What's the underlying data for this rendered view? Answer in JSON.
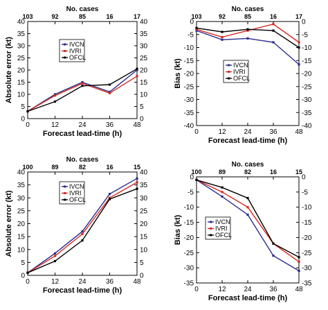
{
  "colors": {
    "IVCN": "#2a2a8c",
    "IVRI": "#d42a1e",
    "OFCL": "#000000"
  },
  "chart_data": [
    {
      "type": "line",
      "x": [
        0,
        12,
        24,
        36,
        48
      ],
      "xlabel": "Forecast lead-time (h)",
      "ylabel": "Absolute error (kt)",
      "toplabel": "No. cases",
      "top_ticks": [
        "103",
        "92",
        "85",
        "16",
        "17"
      ],
      "xticks": [
        "0",
        "12",
        "24",
        "36",
        "48"
      ],
      "ylim": [
        0,
        40
      ],
      "yticks": [
        "0",
        "5",
        "10",
        "15",
        "20",
        "25",
        "30",
        "35",
        "40"
      ],
      "legend_position": "upper-left",
      "series": [
        {
          "name": "IVCN",
          "values": [
            3,
            10,
            15,
            11,
            20
          ]
        },
        {
          "name": "IVRI",
          "values": [
            3,
            9.5,
            14.5,
            10.5,
            17.5
          ]
        },
        {
          "name": "OFCL",
          "values": [
            3,
            7,
            13.5,
            14,
            20.5
          ]
        }
      ]
    },
    {
      "type": "line",
      "x": [
        0,
        12,
        24,
        36,
        48
      ],
      "xlabel": "Forecast lead-time (h)",
      "ylabel": "Bias (kt)",
      "toplabel": "No. cases",
      "top_ticks": [
        "103",
        "92",
        "85",
        "16",
        "17"
      ],
      "xticks": [
        "0",
        "12",
        "24",
        "36",
        "48"
      ],
      "ylim": [
        -40,
        0
      ],
      "yticks": [
        "0",
        "-5",
        "-10",
        "-15",
        "-20",
        "-25",
        "-30",
        "-35",
        "-40"
      ],
      "legend_position": "middle-right",
      "series": [
        {
          "name": "IVCN",
          "values": [
            -3.5,
            -7,
            -6.5,
            -8,
            -16.5
          ]
        },
        {
          "name": "IVRI",
          "values": [
            -3,
            -6,
            -3.5,
            -1,
            -8
          ]
        },
        {
          "name": "OFCL",
          "values": [
            -2.5,
            -4,
            -3,
            -3.5,
            -10
          ]
        }
      ]
    },
    {
      "type": "line",
      "x": [
        0,
        12,
        24,
        36,
        48
      ],
      "xlabel": "Forecast lead-time (h)",
      "ylabel": "Absolute error (kt)",
      "toplabel": "No. cases",
      "top_ticks": [
        "100",
        "89",
        "82",
        "16",
        "15"
      ],
      "xticks": [
        "0",
        "12",
        "24",
        "36",
        "48"
      ],
      "ylim": [
        0,
        40
      ],
      "yticks": [
        "0",
        "5",
        "10",
        "15",
        "20",
        "25",
        "30",
        "35",
        "40"
      ],
      "legend_position": "upper-left",
      "series": [
        {
          "name": "IVCN",
          "values": [
            1,
            8.5,
            17,
            31.5,
            37.5
          ]
        },
        {
          "name": "IVRI",
          "values": [
            1,
            7.5,
            16,
            30,
            36
          ]
        },
        {
          "name": "OFCL",
          "values": [
            1,
            5.5,
            13.5,
            29.5,
            33.5
          ]
        }
      ]
    },
    {
      "type": "line",
      "x": [
        0,
        12,
        24,
        36,
        48
      ],
      "xlabel": "Forecast lead-time (h)",
      "ylabel": "Bias (kt)",
      "toplabel": "No. cases",
      "top_ticks": [
        "100",
        "89",
        "82",
        "16",
        "15"
      ],
      "xticks": [
        "0",
        "12",
        "24",
        "36",
        "48"
      ],
      "ylim": [
        -35,
        0
      ],
      "yticks": [
        "0",
        "-5",
        "-10",
        "-15",
        "-20",
        "-25",
        "-30",
        "-35"
      ],
      "legend_position": "lower-left",
      "series": [
        {
          "name": "IVCN",
          "values": [
            -1,
            -6.5,
            -12.5,
            -26,
            -31
          ]
        },
        {
          "name": "IVRI",
          "values": [
            -1,
            -5,
            -10,
            -22,
            -28
          ]
        },
        {
          "name": "OFCL",
          "values": [
            -1,
            -3.5,
            -7,
            -22,
            -26.5
          ]
        }
      ]
    }
  ]
}
